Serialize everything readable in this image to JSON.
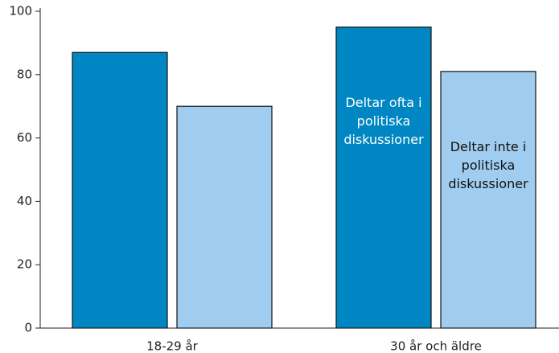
{
  "chart_data": {
    "type": "bar",
    "categories": [
      "18-29 år",
      "30 år och äldre"
    ],
    "series": [
      {
        "name": "Deltar ofta i politiska diskussioner",
        "color": "#0087c3",
        "values": [
          87,
          95
        ]
      },
      {
        "name": "Deltar inte i politiska diskussioner",
        "color": "#a0cdef",
        "values": [
          70,
          81
        ]
      }
    ],
    "ylim": [
      0,
      100
    ],
    "yticks": [
      0,
      20,
      40,
      60,
      80,
      100
    ]
  }
}
